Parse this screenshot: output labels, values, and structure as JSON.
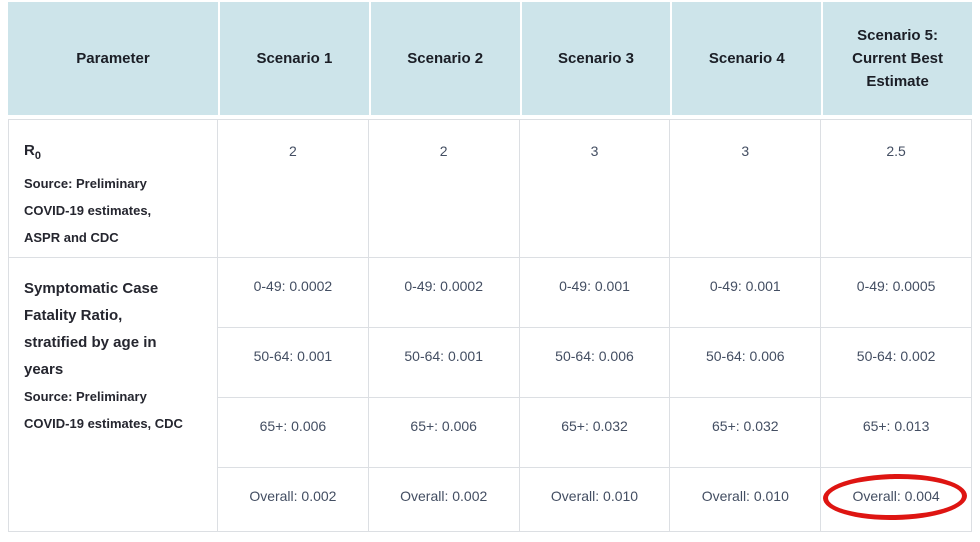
{
  "colors": {
    "header_bg": "#cde4ea",
    "header_text": "#1b1e26",
    "param_text": "#25262f",
    "value_text": "#434e62",
    "grid_border": "#dcdfe3",
    "annotation_red": "#de1512"
  },
  "table": {
    "columns": [
      "Parameter",
      "Scenario 1",
      "Scenario 2",
      "Scenario 3",
      "Scenario 4",
      "Scenario 5: Current Best Estimate"
    ],
    "r0_row": {
      "name": "R",
      "name_subscript": "0",
      "source": "Source: Preliminary COVID-19 estimates, ASPR and CDC",
      "values": [
        "2",
        "2",
        "3",
        "3",
        "2.5"
      ]
    },
    "cfr_row": {
      "title": "Symptomatic Case Fatality Ratio, stratified by age in years",
      "source": "Source: Preliminary COVID-19 estimates, CDC",
      "subrows": [
        {
          "cells": [
            "0-49: 0.0002",
            "0-49: 0.0002",
            "0-49: 0.001",
            "0-49: 0.001",
            "0-49: 0.0005"
          ]
        },
        {
          "cells": [
            "50-64: 0.001",
            "50-64: 0.001",
            "50-64: 0.006",
            "50-64: 0.006",
            "50-64: 0.002"
          ]
        },
        {
          "cells": [
            "65+: 0.006",
            "65+: 0.006",
            "65+: 0.032",
            "65+: 0.032",
            "65+: 0.013"
          ]
        },
        {
          "cells": [
            "Overall: 0.002",
            "Overall: 0.002",
            "Overall: 0.010",
            "Overall: 0.010",
            "Overall: 0.004"
          ]
        }
      ]
    },
    "annotation": {
      "circled_text": "Overall: 0.004",
      "description": "hand-drawn red ellipse around Scenario 5 overall value"
    }
  }
}
